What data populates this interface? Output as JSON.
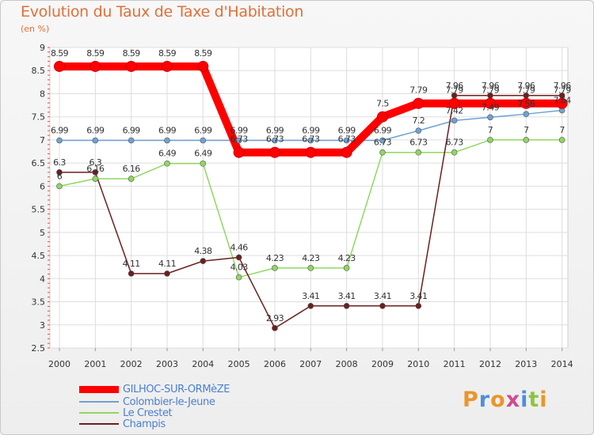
{
  "chart_data": {
    "type": "line",
    "title": "Evolution du Taux de Taxe d'Habitation",
    "subtitle": "(en %)",
    "xlabel": "",
    "ylabel": "",
    "ylim": [
      2.5,
      9
    ],
    "yticks": [
      "2.5",
      "3",
      "3.5",
      "4",
      "4.5",
      "5",
      "5.5",
      "6",
      "6.5",
      "7",
      "7.5",
      "8",
      "8.5",
      "9"
    ],
    "categories": [
      "2000",
      "2001",
      "2002",
      "2003",
      "2004",
      "2005",
      "2006",
      "2007",
      "2008",
      "2009",
      "2010",
      "2011",
      "2012",
      "2013",
      "2014"
    ],
    "series": [
      {
        "name": "GILHOC-SUR-ORMèZE",
        "color": "#ff0000",
        "values": [
          8.59,
          8.59,
          8.59,
          8.59,
          8.59,
          6.73,
          6.73,
          6.73,
          6.73,
          7.5,
          7.79,
          7.79,
          7.79,
          7.79,
          7.79
        ],
        "labels": [
          "8.59",
          "8.59",
          "8.59",
          "8.59",
          "8.59",
          "6.73",
          "6.73",
          "6.73",
          "6.73",
          "7.5",
          "7.79",
          "7.79",
          "7.79",
          "7.79",
          "7.79"
        ]
      },
      {
        "name": "Colombier-le-Jeune",
        "color": "#6ea2d2",
        "values": [
          6.99,
          6.99,
          6.99,
          6.99,
          6.99,
          6.99,
          6.99,
          6.99,
          6.99,
          6.99,
          7.2,
          7.42,
          7.49,
          7.56,
          7.64
        ],
        "labels": [
          "6.99",
          "6.99",
          "6.99",
          "6.99",
          "6.99",
          "6.99",
          "6.99",
          "6.99",
          "6.99",
          "6.99",
          "7.2",
          "7.42",
          "7.49",
          "7.56",
          "7.64"
        ]
      },
      {
        "name": "Le Crestet",
        "color": "#8fd860",
        "values": [
          6,
          6.16,
          6.16,
          6.49,
          6.49,
          4.03,
          4.23,
          4.23,
          4.23,
          6.73,
          6.73,
          6.73,
          7,
          7,
          7
        ],
        "labels": [
          "6",
          "6.16",
          "6.16",
          "6.49",
          "6.49",
          "4.03",
          "4.23",
          "4.23",
          "4.23",
          "6.73",
          "6.73",
          "6.73",
          "7",
          "7",
          "7"
        ]
      },
      {
        "name": "Champis",
        "color": "#6b1f1f",
        "values": [
          6.3,
          6.3,
          4.11,
          4.11,
          4.38,
          4.46,
          2.93,
          3.41,
          3.41,
          3.41,
          3.41,
          7.96,
          7.96,
          7.96,
          7.96
        ],
        "labels": [
          "6.3",
          "6.3",
          "4.11",
          "4.11",
          "4.38",
          "4.46",
          "2.93",
          "3.41",
          "3.41",
          "3.41",
          "3.41",
          "7.96",
          "7.96",
          "7.96",
          "7.96"
        ]
      }
    ],
    "legend": "bottom-left"
  },
  "logo": {
    "letters": [
      "P",
      "r",
      "o",
      "x",
      "i",
      "t",
      "i"
    ],
    "colors": [
      "#e9962b",
      "#4f8fd8",
      "#e9962b",
      "#d24a8f",
      "#4f8fd8",
      "#8cc63f",
      "#e9962b"
    ]
  }
}
